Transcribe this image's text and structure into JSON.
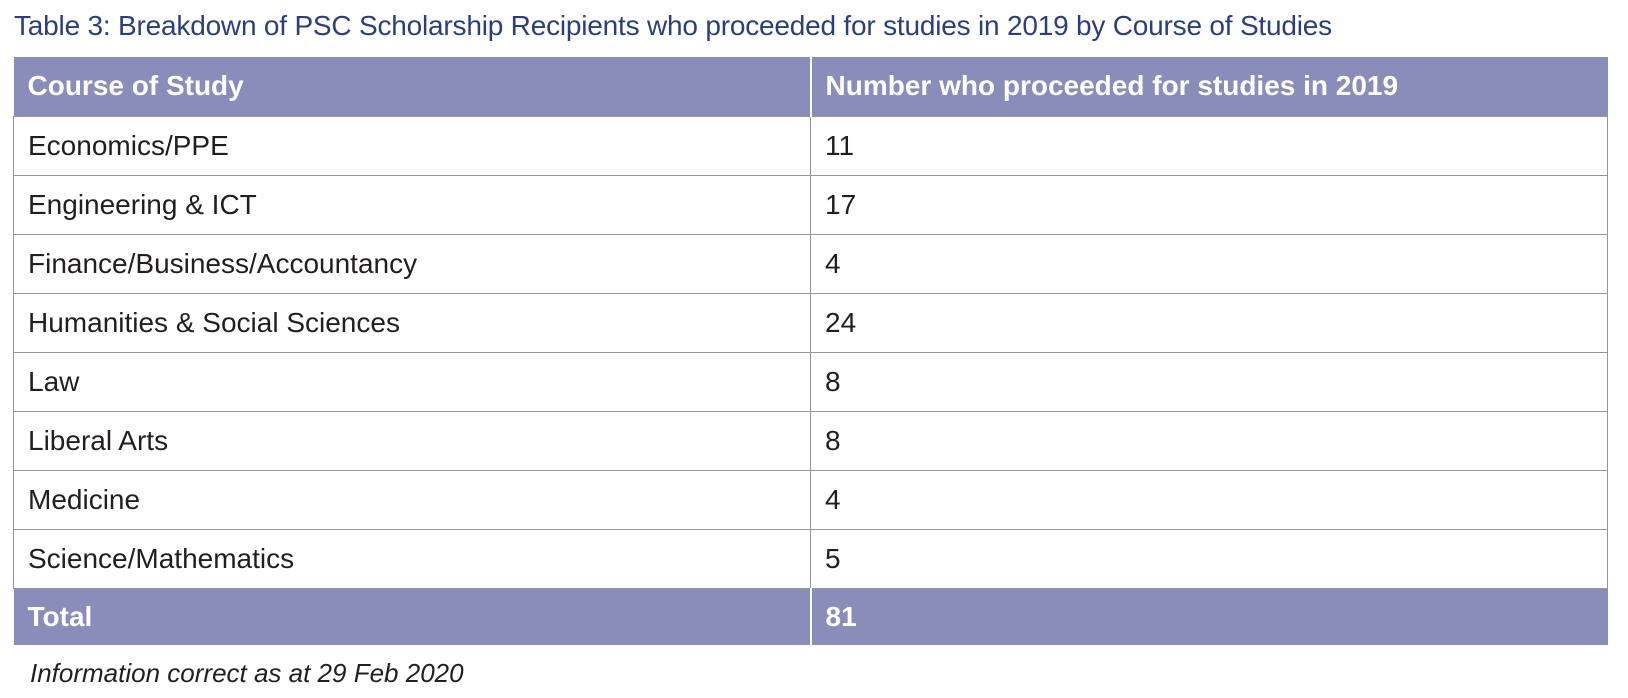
{
  "page": {
    "title": "Table 3: Breakdown of PSC Scholarship Recipients who proceeded for studies in 2019 by Course of Studies",
    "footnote": "Information correct as at 29 Feb 2020"
  },
  "table": {
    "columns": {
      "course": "Course of Study",
      "count": "Number who proceeded for studies in 2019"
    },
    "rows": [
      {
        "course": "Economics/PPE",
        "count": "11"
      },
      {
        "course": "Engineering & ICT",
        "count": "17"
      },
      {
        "course": "Finance/Business/Accountancy",
        "count": "4"
      },
      {
        "course": "Humanities & Social Sciences",
        "count": "24"
      },
      {
        "course": "Law",
        "count": "8"
      },
      {
        "course": "Liberal Arts",
        "count": "8"
      },
      {
        "course": "Medicine",
        "count": "4"
      },
      {
        "course": "Science/Mathematics",
        "count": "5"
      }
    ],
    "total": {
      "label": "Total",
      "count": "81"
    }
  },
  "colors": {
    "header_bg": "#8a8cba",
    "title_text": "#2b3e7d",
    "body_text": "#221e1f",
    "grid_line": "#97979b",
    "header_text": "#ffffff"
  },
  "chart_data": {
    "type": "table",
    "title": "Table 3: Breakdown of PSC Scholarship Recipients who proceeded for studies in 2019 by Course of Studies",
    "categories": [
      "Economics/PPE",
      "Engineering & ICT",
      "Finance/Business/Accountancy",
      "Humanities & Social Sciences",
      "Law",
      "Liberal Arts",
      "Medicine",
      "Science/Mathematics"
    ],
    "values": [
      11,
      17,
      4,
      24,
      8,
      8,
      4,
      5
    ],
    "total": 81,
    "footnote": "Information correct as at 29 Feb 2020"
  }
}
